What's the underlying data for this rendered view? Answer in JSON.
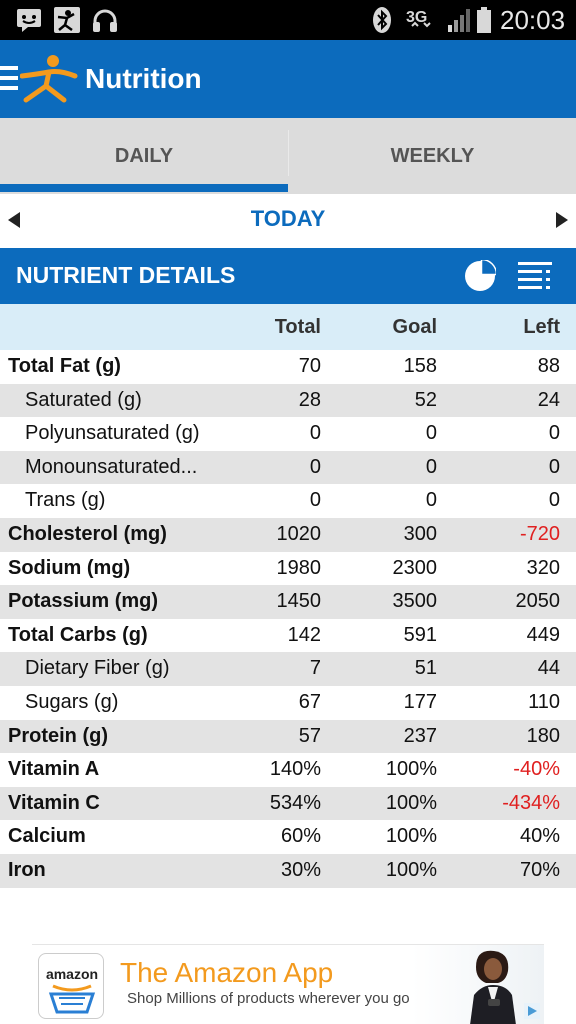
{
  "status_bar": {
    "time": "20:03",
    "network": "3G",
    "icons": [
      "chat-icon",
      "athlete-icon",
      "headphones-icon",
      "bluetooth-icon",
      "signal-icon",
      "battery-icon"
    ]
  },
  "app_bar": {
    "title": "Nutrition",
    "icons": [
      "menu-icon",
      "myfitnesspal-logo-icon"
    ]
  },
  "tabs": [
    {
      "label": "DAILY",
      "selected": true
    },
    {
      "label": "WEEKLY",
      "selected": false
    }
  ],
  "date_nav": {
    "label": "TODAY",
    "icons": [
      "arrow-left-icon",
      "arrow-right-icon"
    ]
  },
  "section": {
    "title": "NUTRIENT DETAILS",
    "icons": [
      "pie-chart-icon",
      "list-icon"
    ]
  },
  "table": {
    "headers": {
      "total": "Total",
      "goal": "Goal",
      "left": "Left"
    },
    "rows": [
      {
        "name": "Total Fat (g)",
        "total": "70",
        "goal": "158",
        "left": "88"
      },
      {
        "name": "Saturated (g)",
        "total": "28",
        "goal": "52",
        "left": "24"
      },
      {
        "name": "Polyunsaturated (g)",
        "total": "0",
        "goal": "0",
        "left": "0"
      },
      {
        "name": "Monounsaturated...",
        "total": "0",
        "goal": "0",
        "left": "0"
      },
      {
        "name": "Trans (g)",
        "total": "0",
        "goal": "0",
        "left": "0"
      },
      {
        "name": "Cholesterol (mg)",
        "total": "1020",
        "goal": "300",
        "left": "-720"
      },
      {
        "name": "Sodium (mg)",
        "total": "1980",
        "goal": "2300",
        "left": "320"
      },
      {
        "name": "Potassium (mg)",
        "total": "1450",
        "goal": "3500",
        "left": "2050"
      },
      {
        "name": "Total Carbs (g)",
        "total": "142",
        "goal": "591",
        "left": "449"
      },
      {
        "name": "Dietary Fiber (g)",
        "total": "7",
        "goal": "51",
        "left": "44"
      },
      {
        "name": "Sugars (g)",
        "total": "67",
        "goal": "177",
        "left": "110"
      },
      {
        "name": "Protein (g)",
        "total": "57",
        "goal": "237",
        "left": "180"
      },
      {
        "name": "Vitamin A",
        "total": "140%",
        "goal": "100%",
        "left": "-40%"
      },
      {
        "name": "Vitamin C",
        "total": "534%",
        "goal": "100%",
        "left": "-434%"
      },
      {
        "name": "Calcium",
        "total": "60%",
        "goal": "100%",
        "left": "40%"
      },
      {
        "name": "Iron",
        "total": "30%",
        "goal": "100%",
        "left": "70%"
      }
    ]
  },
  "ad": {
    "logo_text": "amazon",
    "title": "The Amazon App",
    "subtitle": "Shop Millions of products wherever you go"
  },
  "colors": {
    "brand_blue": "#0c6bbd",
    "negative_red": "#e02020",
    "header_row": "#d9edf8",
    "alt_row": "#e3e3e3",
    "logo_orange": "#f39a1e"
  }
}
